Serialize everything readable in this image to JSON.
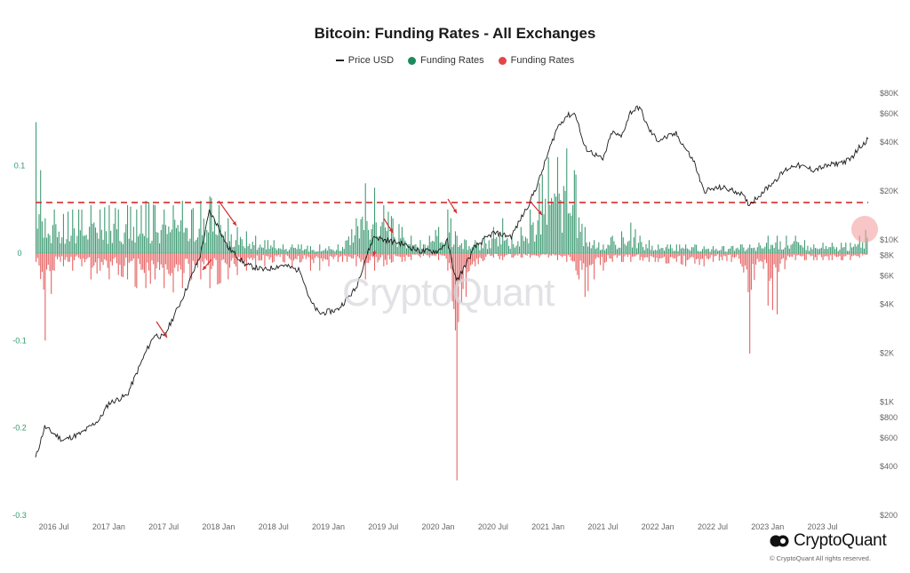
{
  "chart_data": {
    "type": "bar",
    "title": "Bitcoin: Funding Rates - All Exchanges",
    "legend": [
      {
        "label": "Price USD",
        "kind": "line",
        "color": "#222222"
      },
      {
        "label": "Funding Rates",
        "kind": "dot",
        "color": "#1e8a5c"
      },
      {
        "label": "Funding Rates",
        "kind": "dot",
        "color": "#e04848"
      }
    ],
    "x_ticks": [
      "2016 Jul",
      "2017 Jan",
      "2017 Jul",
      "2018 Jan",
      "2018 Jul",
      "2019 Jan",
      "2019 Jul",
      "2020 Jan",
      "2020 Jul",
      "2021 Jan",
      "2021 Jul",
      "2022 Jan",
      "2022 Jul",
      "2023 Jan",
      "2023 Jul"
    ],
    "x_range": [
      "2016-05",
      "2023-12"
    ],
    "left_axis": {
      "ticks": [
        0.1,
        0,
        -0.1,
        -0.2,
        -0.3
      ],
      "labels": [
        "0.1",
        "0",
        "-0.1",
        "-0.2",
        "-0.3"
      ],
      "range": [
        -0.3,
        0.16
      ]
    },
    "right_axis": {
      "scale": "log",
      "range": [
        200,
        80000
      ],
      "ticks": [
        80000,
        60000,
        40000,
        20000,
        10000,
        8000,
        6000,
        4000,
        2000,
        1000,
        800,
        600,
        400,
        200
      ],
      "labels": [
        "$80K",
        "$60K",
        "$40K",
        "$20K",
        "$10K",
        "$8K",
        "$6K",
        "$4K",
        "$2K",
        "$1K",
        "$800",
        "$600",
        "$400",
        "$200"
      ]
    },
    "reference_line": {
      "value": 0.058,
      "style": "dashed",
      "color": "#d32f2f"
    },
    "price_series": {
      "name": "Price USD",
      "x": [
        "2016-05",
        "2016-06",
        "2016-08",
        "2016-10",
        "2016-12",
        "2017-01",
        "2017-03",
        "2017-05",
        "2017-06",
        "2017-07",
        "2017-09",
        "2017-11",
        "2017-12",
        "2018-01",
        "2018-02",
        "2018-04",
        "2018-06",
        "2018-08",
        "2018-10",
        "2018-11",
        "2018-12",
        "2019-02",
        "2019-04",
        "2019-05",
        "2019-06",
        "2019-07",
        "2019-09",
        "2019-11",
        "2020-01",
        "2020-02",
        "2020-03",
        "2020-05",
        "2020-07",
        "2020-09",
        "2020-11",
        "2020-12",
        "2021-01",
        "2021-02",
        "2021-03",
        "2021-04",
        "2021-05",
        "2021-06",
        "2021-07",
        "2021-08",
        "2021-09",
        "2021-10",
        "2021-11",
        "2021-12",
        "2022-01",
        "2022-03",
        "2022-05",
        "2022-06",
        "2022-08",
        "2022-10",
        "2022-11",
        "2023-01",
        "2023-03",
        "2023-04",
        "2023-06",
        "2023-08",
        "2023-10",
        "2023-11",
        "2023-12"
      ],
      "y": [
        450,
        700,
        580,
        640,
        780,
        980,
        1100,
        2000,
        2600,
        2500,
        4300,
        8000,
        15000,
        12000,
        9000,
        7000,
        6500,
        7000,
        6400,
        4200,
        3500,
        3700,
        5000,
        7500,
        10500,
        10000,
        9500,
        8500,
        8500,
        9800,
        5500,
        9000,
        11000,
        10500,
        17000,
        23000,
        34000,
        49000,
        58000,
        60000,
        37000,
        34000,
        31000,
        46000,
        43000,
        61000,
        66000,
        48000,
        41000,
        45000,
        30000,
        20000,
        21000,
        19500,
        16500,
        21000,
        27000,
        29000,
        27000,
        29000,
        31000,
        37000,
        42000
      ]
    },
    "funding_series": {
      "name": "Funding Rates",
      "x": [
        "2016-05",
        "2016-06",
        "2016-07",
        "2016-08",
        "2016-09",
        "2016-10",
        "2016-11",
        "2016-12",
        "2017-01",
        "2017-02",
        "2017-03",
        "2017-04",
        "2017-05",
        "2017-06",
        "2017-07",
        "2017-08",
        "2017-09",
        "2017-10",
        "2017-11",
        "2017-12",
        "2018-01",
        "2018-02",
        "2018-03",
        "2018-04",
        "2018-05",
        "2018-06",
        "2018-07",
        "2018-08",
        "2018-09",
        "2018-10",
        "2018-11",
        "2018-12",
        "2019-01",
        "2019-02",
        "2019-03",
        "2019-04",
        "2019-05",
        "2019-06",
        "2019-07",
        "2019-08",
        "2019-09",
        "2019-10",
        "2019-11",
        "2019-12",
        "2020-01",
        "2020-02",
        "2020-03",
        "2020-04",
        "2020-05",
        "2020-06",
        "2020-07",
        "2020-08",
        "2020-09",
        "2020-10",
        "2020-11",
        "2020-12",
        "2021-01",
        "2021-02",
        "2021-03",
        "2021-04",
        "2021-05",
        "2021-06",
        "2021-07",
        "2021-08",
        "2021-09",
        "2021-10",
        "2021-11",
        "2021-12",
        "2022-01",
        "2022-02",
        "2022-03",
        "2022-04",
        "2022-05",
        "2022-06",
        "2022-07",
        "2022-08",
        "2022-09",
        "2022-10",
        "2022-11",
        "2022-12",
        "2023-01",
        "2023-02",
        "2023-03",
        "2023-04",
        "2023-05",
        "2023-06",
        "2023-07",
        "2023-08",
        "2023-09",
        "2023-10",
        "2023-11",
        "2023-12"
      ],
      "max": [
        0.15,
        0.04,
        0.05,
        0.045,
        0.05,
        0.05,
        0.055,
        0.05,
        0.055,
        0.05,
        0.055,
        0.05,
        0.06,
        0.055,
        0.05,
        0.055,
        0.06,
        0.05,
        0.06,
        0.065,
        0.055,
        0.04,
        0.03,
        0.025,
        0.02,
        0.015,
        0.015,
        0.01,
        0.01,
        0.01,
        0.008,
        0.01,
        0.008,
        0.01,
        0.015,
        0.04,
        0.08,
        0.075,
        0.055,
        0.04,
        0.03,
        0.02,
        0.015,
        0.02,
        0.03,
        0.05,
        0.02,
        0.015,
        0.015,
        0.02,
        0.03,
        0.04,
        0.02,
        0.03,
        0.05,
        0.08,
        0.11,
        0.11,
        0.12,
        0.09,
        0.03,
        0.015,
        0.01,
        0.02,
        0.025,
        0.035,
        0.02,
        0.015,
        0.01,
        0.01,
        0.01,
        0.01,
        0.01,
        0.008,
        0.008,
        0.008,
        0.008,
        0.01,
        0.01,
        0.012,
        0.02,
        0.02,
        0.02,
        0.02,
        0.015,
        0.01,
        0.012,
        0.012,
        0.012,
        0.012,
        0.02,
        0.03
      ],
      "min": [
        -0.01,
        -0.1,
        -0.02,
        -0.015,
        -0.02,
        -0.015,
        -0.03,
        -0.02,
        -0.03,
        -0.025,
        -0.03,
        -0.04,
        -0.04,
        -0.03,
        -0.04,
        -0.045,
        -0.04,
        -0.03,
        -0.03,
        -0.04,
        -0.035,
        -0.03,
        -0.025,
        -0.02,
        -0.015,
        -0.015,
        -0.01,
        -0.01,
        -0.015,
        -0.01,
        -0.02,
        -0.02,
        -0.015,
        -0.01,
        -0.01,
        -0.015,
        -0.03,
        -0.02,
        -0.015,
        -0.01,
        -0.01,
        -0.008,
        -0.005,
        -0.005,
        -0.008,
        -0.02,
        -0.26,
        -0.05,
        -0.015,
        -0.008,
        -0.005,
        -0.008,
        -0.005,
        -0.005,
        -0.005,
        -0.005,
        -0.005,
        -0.008,
        -0.01,
        -0.02,
        -0.05,
        -0.03,
        -0.02,
        -0.01,
        -0.01,
        -0.01,
        -0.008,
        -0.01,
        -0.01,
        -0.012,
        -0.01,
        -0.015,
        -0.012,
        -0.015,
        -0.01,
        -0.008,
        -0.01,
        -0.012,
        -0.115,
        -0.01,
        -0.06,
        -0.07,
        -0.008,
        -0.008,
        -0.008,
        -0.008,
        -0.008,
        -0.008,
        -0.008,
        -0.008,
        -0.005,
        -0.005
      ]
    }
  },
  "watermark": "CryptoQuant",
  "brand": {
    "name": "CryptoQuant",
    "copyright": "© CryptoQuant All rights reserved."
  }
}
